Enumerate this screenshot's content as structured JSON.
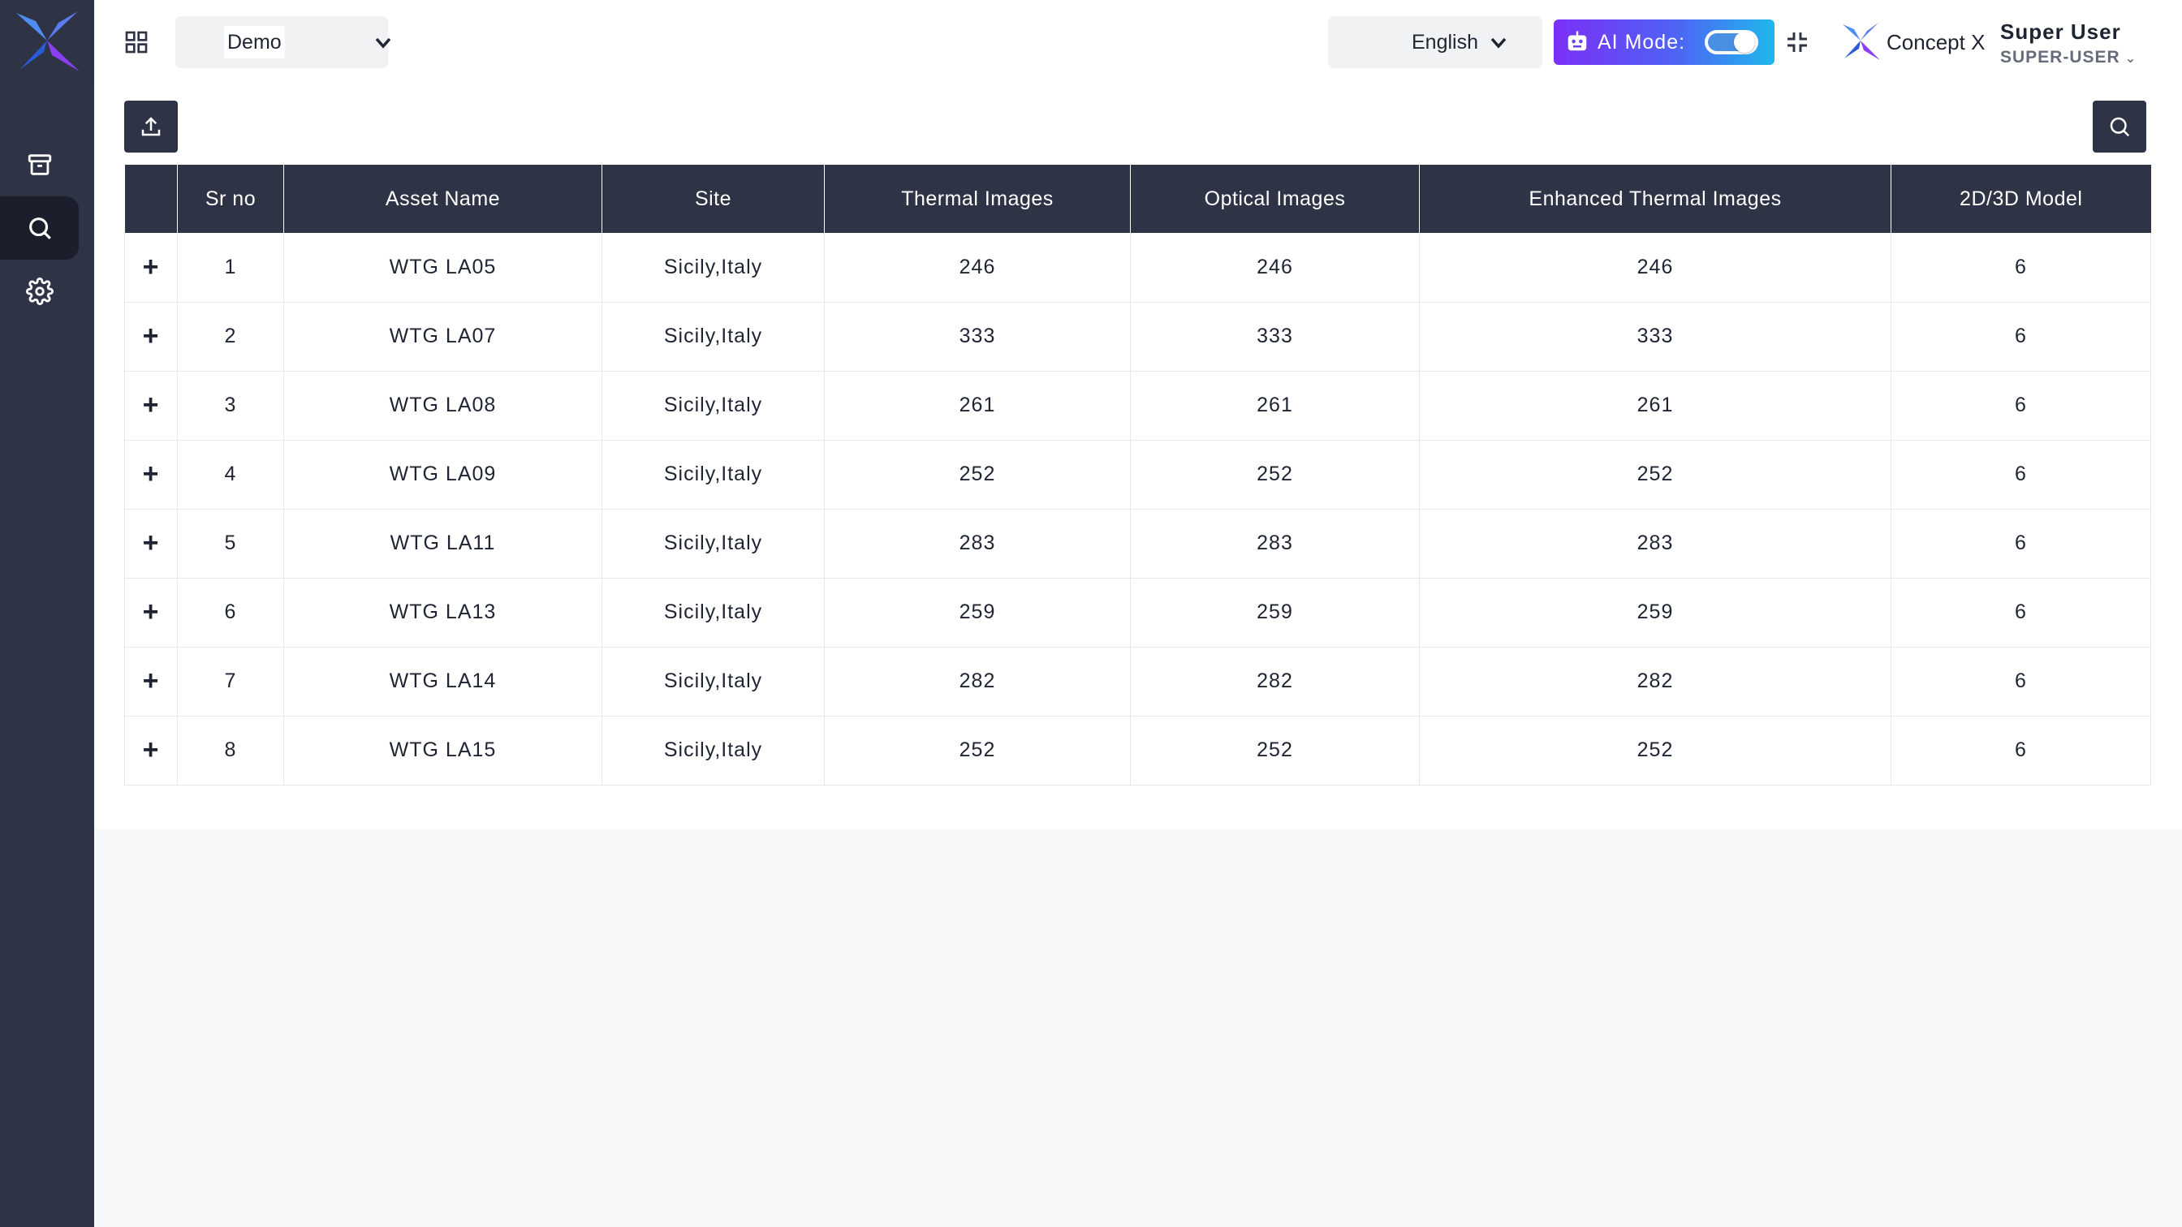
{
  "header": {
    "project_selected": "Demo",
    "language": "English",
    "ai_mode_label": "AI Mode:",
    "ai_mode_enabled": true,
    "brand_name": "Concept X",
    "user_name": "Super User",
    "user_role": "SUPER-USER"
  },
  "sidebar": {
    "items": [
      {
        "icon": "archive-icon",
        "active": false
      },
      {
        "icon": "search-icon",
        "active": true
      },
      {
        "icon": "gear-icon",
        "active": false
      }
    ]
  },
  "toolbar": {
    "upload_icon": "upload-icon",
    "search_icon": "search-icon"
  },
  "table": {
    "columns": [
      "",
      "Sr no",
      "Asset Name",
      "Site",
      "Thermal Images",
      "Optical Images",
      "Enhanced Thermal Images",
      "2D/3D Model"
    ],
    "rows": [
      {
        "expand": "+",
        "sr": "1",
        "asset": "WTG LA05",
        "site": "Sicily,Italy",
        "thermal": "246",
        "optical": "246",
        "enhanced": "246",
        "model": "6"
      },
      {
        "expand": "+",
        "sr": "2",
        "asset": "WTG LA07",
        "site": "Sicily,Italy",
        "thermal": "333",
        "optical": "333",
        "enhanced": "333",
        "model": "6"
      },
      {
        "expand": "+",
        "sr": "3",
        "asset": "WTG LA08",
        "site": "Sicily,Italy",
        "thermal": "261",
        "optical": "261",
        "enhanced": "261",
        "model": "6"
      },
      {
        "expand": "+",
        "sr": "4",
        "asset": "WTG LA09",
        "site": "Sicily,Italy",
        "thermal": "252",
        "optical": "252",
        "enhanced": "252",
        "model": "6"
      },
      {
        "expand": "+",
        "sr": "5",
        "asset": "WTG LA11",
        "site": "Sicily,Italy",
        "thermal": "283",
        "optical": "283",
        "enhanced": "283",
        "model": "6"
      },
      {
        "expand": "+",
        "sr": "6",
        "asset": "WTG LA13",
        "site": "Sicily,Italy",
        "thermal": "259",
        "optical": "259",
        "enhanced": "259",
        "model": "6"
      },
      {
        "expand": "+",
        "sr": "7",
        "asset": "WTG LA14",
        "site": "Sicily,Italy",
        "thermal": "282",
        "optical": "282",
        "enhanced": "282",
        "model": "6"
      },
      {
        "expand": "+",
        "sr": "8",
        "asset": "WTG LA15",
        "site": "Sicily,Italy",
        "thermal": "252",
        "optical": "252",
        "enhanced": "252",
        "model": "6"
      }
    ]
  },
  "colors": {
    "sidebar_bg": "#2e3345",
    "table_header_bg": "#2e3345",
    "ai_gradient_start": "#7b2ff7",
    "ai_gradient_end": "#1fb8ec"
  }
}
